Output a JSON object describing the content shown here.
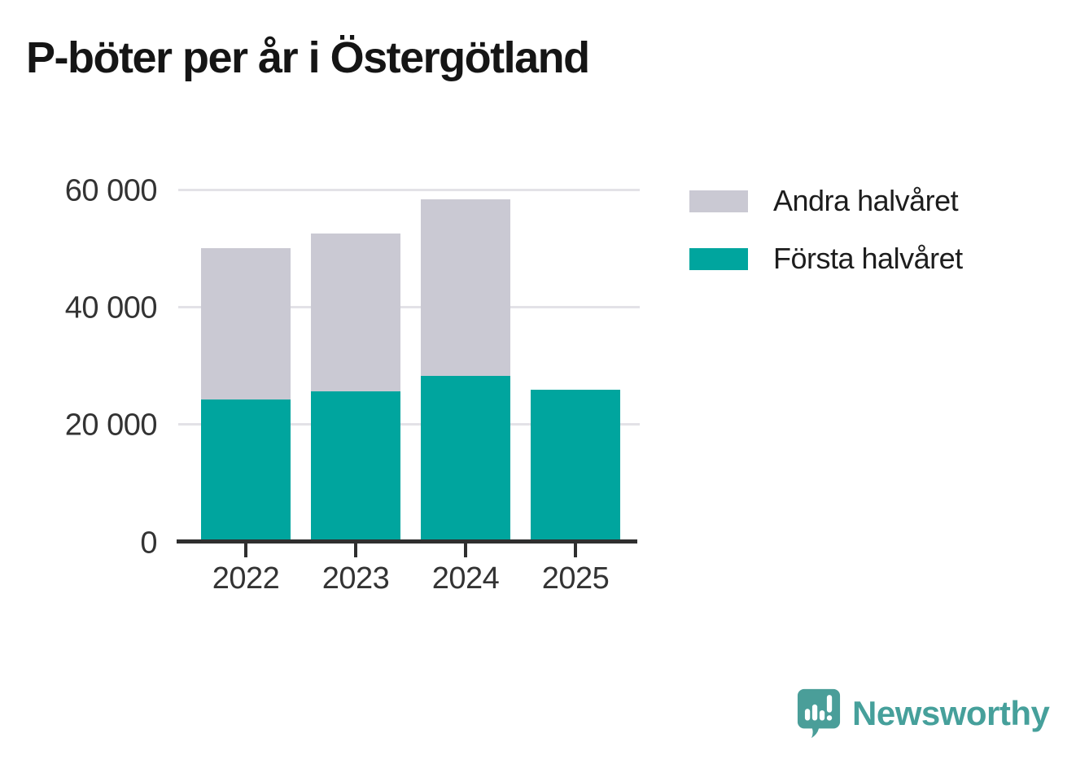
{
  "title": "P-böter per år i Östergötland",
  "chart_data": {
    "type": "bar",
    "stacked": true,
    "title": "P-böter per år i Östergötland",
    "categories": [
      "2022",
      "2023",
      "2024",
      "2025"
    ],
    "series": [
      {
        "name": "Första halvåret",
        "color": "#00a59e",
        "values": [
          24200,
          25700,
          28300,
          25900
        ]
      },
      {
        "name": "Andra halvåret",
        "color": "#cac9d3",
        "values": [
          25800,
          26800,
          30000,
          0
        ]
      }
    ],
    "totals": [
      50000,
      52500,
      58300,
      25900
    ],
    "xlabel": "",
    "ylabel": "",
    "ylim": [
      0,
      60000
    ],
    "yticks": [
      {
        "value": 0,
        "label": "0"
      },
      {
        "value": 20000,
        "label": "20 000"
      },
      {
        "value": 40000,
        "label": "40 000"
      },
      {
        "value": 60000,
        "label": "60 000"
      }
    ],
    "grid": "horizontal",
    "legend_position": "right"
  },
  "legend": {
    "items": [
      {
        "label": "Andra halvåret",
        "color": "#cac9d3"
      },
      {
        "label": "Första halvåret",
        "color": "#00a59e"
      }
    ]
  },
  "footer": {
    "brand": "Newsworthy"
  },
  "colors": {
    "first_half": "#00a59e",
    "second_half": "#cac9d3",
    "gridline": "#e3e2e7",
    "axis": "#2f2f2f",
    "text": "#333333",
    "title": "#151515",
    "brand_teal": "#46a09b",
    "logo_bubble": "#4a9e99"
  }
}
